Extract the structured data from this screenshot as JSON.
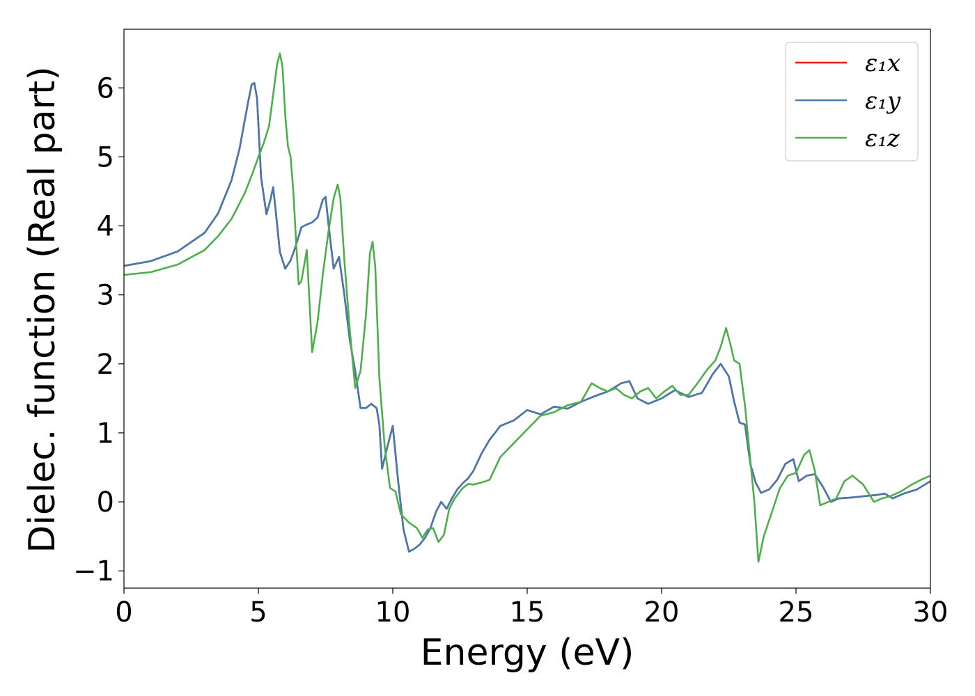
{
  "chart_data": {
    "type": "line",
    "title": "",
    "xlabel": "Energy (eV)",
    "ylabel": "Dielec. function (Real part)",
    "xlim": [
      0,
      30
    ],
    "ylim": [
      -1.25,
      6.85
    ],
    "xticks": [
      0,
      5,
      10,
      15,
      20,
      25,
      30
    ],
    "yticks": [
      -1,
      0,
      1,
      2,
      3,
      4,
      5,
      6
    ],
    "xtick_labels": [
      "0",
      "5",
      "10",
      "15",
      "20",
      "25",
      "30"
    ],
    "ytick_labels": [
      "−1",
      "0",
      "1",
      "2",
      "3",
      "4",
      "5",
      "6"
    ],
    "grid": false,
    "legend_position": "top-right",
    "series": [
      {
        "name": "ε₁x",
        "color": "#e41a1c",
        "x": [
          0,
          1,
          2,
          3,
          3.5,
          4,
          4.3,
          4.6,
          4.75,
          4.85,
          4.95,
          5.1,
          5.3,
          5.45,
          5.55,
          5.65,
          5.8,
          6.0,
          6.2,
          6.4,
          6.6,
          6.8,
          7.0,
          7.2,
          7.4,
          7.5,
          7.6,
          7.8,
          8.0,
          8.2,
          8.4,
          8.6,
          8.8,
          9.0,
          9.2,
          9.4,
          9.5,
          9.6,
          9.8,
          10.0,
          10.2,
          10.4,
          10.6,
          10.8,
          11.0,
          11.2,
          11.4,
          11.6,
          11.8,
          12.0,
          12.2,
          12.4,
          12.6,
          12.8,
          13.0,
          13.3,
          13.6,
          14.0,
          14.5,
          15.0,
          15.5,
          16.0,
          16.5,
          17.0,
          17.5,
          18.0,
          18.5,
          18.8,
          19.1,
          19.5,
          20.0,
          20.5,
          21.0,
          21.5,
          21.9,
          22.2,
          22.5,
          22.7,
          22.9,
          23.1,
          23.3,
          23.5,
          23.7,
          24.0,
          24.3,
          24.6,
          24.9,
          25.1,
          25.4,
          25.7,
          26.0,
          26.3,
          26.6,
          27.0,
          27.5,
          28.0,
          28.3,
          28.6,
          29.0,
          29.5,
          30.0
        ],
        "y": [
          3.42,
          3.49,
          3.63,
          3.9,
          4.18,
          4.66,
          5.12,
          5.76,
          6.05,
          6.07,
          5.85,
          4.7,
          4.17,
          4.38,
          4.56,
          4.2,
          3.62,
          3.38,
          3.5,
          3.72,
          3.98,
          4.02,
          4.05,
          4.12,
          4.38,
          4.42,
          4.05,
          3.38,
          3.55,
          3.0,
          2.35,
          1.9,
          1.36,
          1.36,
          1.42,
          1.36,
          1.12,
          0.48,
          0.8,
          1.1,
          0.3,
          -0.4,
          -0.72,
          -0.68,
          -0.62,
          -0.52,
          -0.38,
          -0.15,
          0.0,
          -0.1,
          0.05,
          0.18,
          0.27,
          0.34,
          0.45,
          0.7,
          0.9,
          1.1,
          1.18,
          1.33,
          1.27,
          1.38,
          1.35,
          1.45,
          1.53,
          1.6,
          1.72,
          1.75,
          1.5,
          1.42,
          1.5,
          1.62,
          1.52,
          1.58,
          1.85,
          2.0,
          1.82,
          1.45,
          1.15,
          1.12,
          0.55,
          0.28,
          0.13,
          0.18,
          0.32,
          0.55,
          0.62,
          0.3,
          0.38,
          0.4,
          0.22,
          0.0,
          0.05,
          0.06,
          0.08,
          0.1,
          0.12,
          0.05,
          0.12,
          0.18,
          0.3
        ]
      },
      {
        "name": "ε₁y",
        "color": "#4678b2",
        "x": [
          0,
          1,
          2,
          3,
          3.5,
          4,
          4.3,
          4.6,
          4.75,
          4.85,
          4.95,
          5.1,
          5.3,
          5.45,
          5.55,
          5.65,
          5.8,
          6.0,
          6.2,
          6.4,
          6.6,
          6.8,
          7.0,
          7.2,
          7.4,
          7.5,
          7.6,
          7.8,
          8.0,
          8.2,
          8.4,
          8.6,
          8.8,
          9.0,
          9.2,
          9.4,
          9.5,
          9.6,
          9.8,
          10.0,
          10.2,
          10.4,
          10.6,
          10.8,
          11.0,
          11.2,
          11.4,
          11.6,
          11.8,
          12.0,
          12.2,
          12.4,
          12.6,
          12.8,
          13.0,
          13.3,
          13.6,
          14.0,
          14.5,
          15.0,
          15.5,
          16.0,
          16.5,
          17.0,
          17.5,
          18.0,
          18.5,
          18.8,
          19.1,
          19.5,
          20.0,
          20.5,
          21.0,
          21.5,
          21.9,
          22.2,
          22.5,
          22.7,
          22.9,
          23.1,
          23.3,
          23.5,
          23.7,
          24.0,
          24.3,
          24.6,
          24.9,
          25.1,
          25.4,
          25.7,
          26.0,
          26.3,
          26.6,
          27.0,
          27.5,
          28.0,
          28.3,
          28.6,
          29.0,
          29.5,
          30.0
        ],
        "y": [
          3.42,
          3.49,
          3.63,
          3.9,
          4.18,
          4.66,
          5.12,
          5.76,
          6.05,
          6.07,
          5.85,
          4.7,
          4.17,
          4.38,
          4.56,
          4.2,
          3.62,
          3.38,
          3.5,
          3.72,
          3.98,
          4.02,
          4.05,
          4.12,
          4.38,
          4.42,
          4.05,
          3.38,
          3.55,
          3.0,
          2.35,
          1.9,
          1.36,
          1.36,
          1.42,
          1.36,
          1.12,
          0.48,
          0.8,
          1.1,
          0.3,
          -0.4,
          -0.72,
          -0.68,
          -0.62,
          -0.52,
          -0.38,
          -0.15,
          0.0,
          -0.1,
          0.05,
          0.18,
          0.27,
          0.34,
          0.45,
          0.7,
          0.9,
          1.1,
          1.18,
          1.33,
          1.27,
          1.38,
          1.35,
          1.45,
          1.53,
          1.6,
          1.72,
          1.75,
          1.5,
          1.42,
          1.5,
          1.62,
          1.52,
          1.58,
          1.85,
          2.0,
          1.82,
          1.45,
          1.15,
          1.12,
          0.55,
          0.28,
          0.13,
          0.18,
          0.32,
          0.55,
          0.62,
          0.3,
          0.38,
          0.4,
          0.22,
          0.0,
          0.05,
          0.06,
          0.08,
          0.1,
          0.12,
          0.05,
          0.12,
          0.18,
          0.3
        ]
      },
      {
        "name": "ε₁z",
        "color": "#4daf4a",
        "x": [
          0,
          1,
          2,
          3,
          3.5,
          4,
          4.5,
          4.8,
          5.0,
          5.2,
          5.4,
          5.55,
          5.7,
          5.8,
          5.9,
          6.0,
          6.1,
          6.2,
          6.3,
          6.4,
          6.5,
          6.6,
          6.8,
          7.0,
          7.2,
          7.4,
          7.6,
          7.8,
          7.95,
          8.05,
          8.2,
          8.4,
          8.6,
          8.8,
          9.0,
          9.15,
          9.25,
          9.35,
          9.5,
          9.7,
          9.9,
          10.1,
          10.3,
          10.6,
          10.9,
          11.1,
          11.3,
          11.5,
          11.7,
          11.9,
          12.1,
          12.3,
          12.6,
          12.8,
          13.0,
          13.3,
          13.6,
          14.0,
          14.5,
          15.0,
          15.5,
          16.0,
          16.5,
          17.0,
          17.4,
          17.7,
          18.0,
          18.3,
          18.6,
          18.9,
          19.2,
          19.5,
          19.8,
          20.1,
          20.4,
          20.7,
          21.0,
          21.3,
          21.7,
          22.0,
          22.2,
          22.4,
          22.55,
          22.7,
          22.9,
          23.1,
          23.3,
          23.45,
          23.6,
          23.8,
          24.1,
          24.4,
          24.7,
          25.0,
          25.3,
          25.5,
          25.7,
          25.9,
          26.2,
          26.5,
          26.8,
          27.1,
          27.5,
          27.9,
          28.2,
          28.5,
          28.9,
          29.3,
          29.7,
          30.0
        ],
        "y": [
          3.29,
          3.33,
          3.44,
          3.65,
          3.85,
          4.1,
          4.48,
          4.78,
          5.0,
          5.2,
          5.45,
          5.9,
          6.35,
          6.5,
          6.3,
          5.6,
          5.15,
          5.0,
          4.5,
          3.8,
          3.15,
          3.2,
          3.65,
          2.17,
          2.6,
          3.3,
          3.9,
          4.4,
          4.6,
          4.4,
          3.5,
          2.5,
          1.65,
          1.9,
          2.7,
          3.6,
          3.77,
          3.4,
          1.8,
          0.8,
          0.2,
          0.15,
          -0.18,
          -0.3,
          -0.38,
          -0.52,
          -0.4,
          -0.38,
          -0.58,
          -0.48,
          -0.1,
          0.05,
          0.2,
          0.26,
          0.25,
          0.28,
          0.32,
          0.65,
          0.85,
          1.05,
          1.25,
          1.3,
          1.4,
          1.45,
          1.72,
          1.65,
          1.6,
          1.65,
          1.55,
          1.5,
          1.6,
          1.65,
          1.5,
          1.6,
          1.68,
          1.55,
          1.55,
          1.7,
          1.92,
          2.05,
          2.25,
          2.52,
          2.3,
          2.05,
          2.0,
          1.4,
          0.6,
          0.0,
          -0.87,
          -0.5,
          -0.15,
          0.2,
          0.38,
          0.42,
          0.68,
          0.75,
          0.45,
          -0.05,
          0.0,
          0.05,
          0.3,
          0.38,
          0.25,
          0.0,
          0.05,
          0.08,
          0.15,
          0.25,
          0.33,
          0.38
        ]
      }
    ]
  }
}
